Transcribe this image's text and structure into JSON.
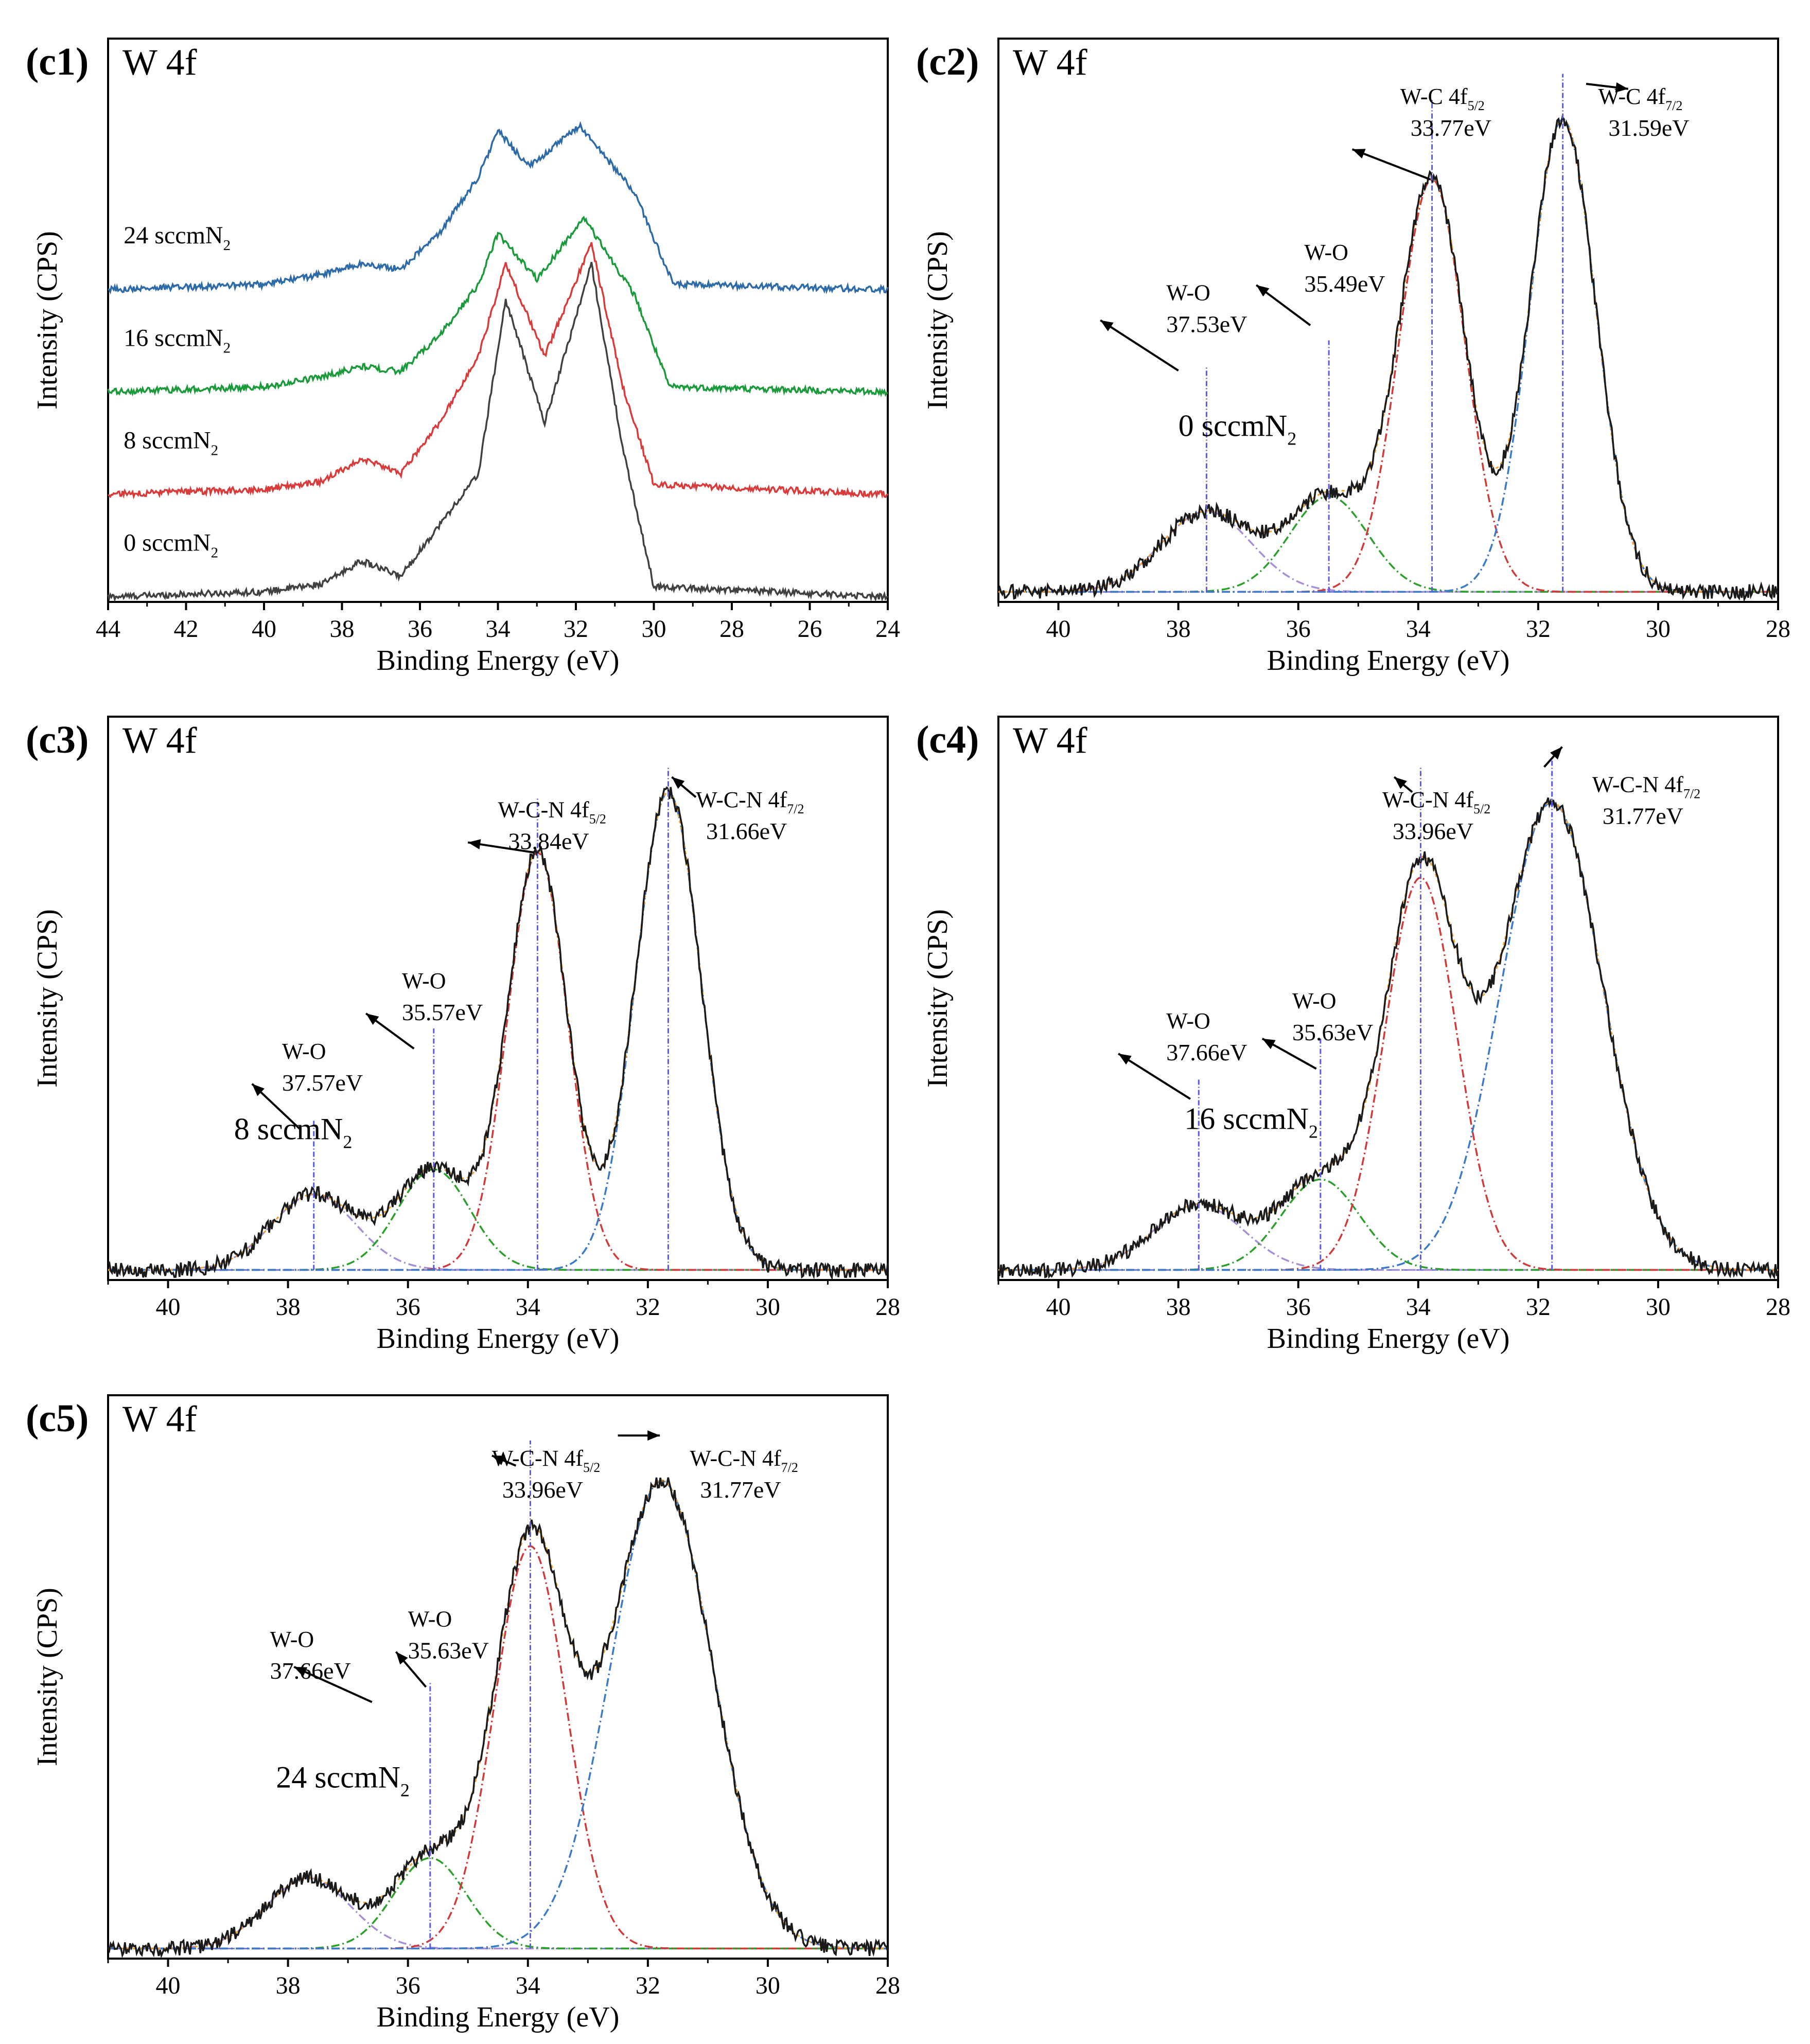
{
  "chart_data": [
    {
      "id": "c1",
      "type": "line",
      "panel_label": "(c1)",
      "title": "W 4f",
      "xlabel": "Binding Energy (eV)",
      "ylabel": "Intensity (CPS)",
      "xlim": [
        44,
        24
      ],
      "ylim": [
        0,
        11
      ],
      "x_ticks": [
        44,
        42,
        40,
        38,
        36,
        34,
        32,
        30,
        28,
        26,
        24
      ],
      "series": [
        {
          "name": "0 sccmN₂",
          "label_text": "0 sccmN",
          "label_sub": "2",
          "color": "#404040",
          "offset": 0.0,
          "x": [
            44,
            40,
            38.5,
            37.5,
            36.5,
            35.5,
            34.5,
            33.8,
            32.8,
            31.6,
            30.8,
            30,
            24
          ],
          "y": [
            0.1,
            0.2,
            0.35,
            0.8,
            0.5,
            1.5,
            2.5,
            5.9,
            3.5,
            6.6,
            3.0,
            0.3,
            0.1
          ]
        },
        {
          "name": "8 sccmN₂",
          "label_text": "8 sccmN",
          "label_sub": "2",
          "color": "#d93a3a",
          "offset": 2.0,
          "x": [
            44,
            40,
            38.5,
            37.5,
            36.5,
            35.5,
            34.5,
            33.8,
            32.8,
            31.6,
            30.8,
            30,
            24
          ],
          "y": [
            0.1,
            0.2,
            0.35,
            0.8,
            0.5,
            1.5,
            2.8,
            4.6,
            2.8,
            5.0,
            2.2,
            0.3,
            0.1
          ]
        },
        {
          "name": "16 sccmN₂",
          "label_text": "16 sccmN",
          "label_sub": "2",
          "color": "#1a9a3a",
          "offset": 4.0,
          "x": [
            44,
            40,
            38.5,
            37.5,
            36.5,
            35.5,
            34.5,
            34.0,
            33.0,
            31.8,
            30.5,
            29.6,
            24
          ],
          "y": [
            0.1,
            0.2,
            0.4,
            0.6,
            0.5,
            1.2,
            2.2,
            3.2,
            2.3,
            3.5,
            2.0,
            0.2,
            0.1
          ]
        },
        {
          "name": "24 sccmN₂",
          "label_text": "24 sccmN",
          "label_sub": "2",
          "color": "#2d6aa8",
          "offset": 6.0,
          "x": [
            44,
            40,
            38.5,
            37.5,
            36.5,
            35.5,
            34.5,
            34.0,
            33.2,
            31.9,
            30.5,
            29.5,
            24
          ],
          "y": [
            0.1,
            0.2,
            0.4,
            0.6,
            0.5,
            1.2,
            2.3,
            3.2,
            2.5,
            3.3,
            2.0,
            0.2,
            0.1
          ]
        }
      ]
    },
    {
      "id": "c2",
      "type": "line",
      "panel_label": "(c2)",
      "title": "W 4f",
      "xlabel": "Binding Energy (eV)",
      "ylabel": "Intensity (CPS)",
      "xlim": [
        41,
        28
      ],
      "ylim": [
        0,
        1.12
      ],
      "x_ticks": [
        40,
        38,
        36,
        34,
        32,
        30,
        28
      ],
      "baseline": 0.02,
      "condition": {
        "text": "0 sccmN",
        "sub": "2"
      },
      "peaks": [
        {
          "center": 37.53,
          "amp": 0.16,
          "sigma": 0.75,
          "color": "#a78fd6",
          "name": "W-O",
          "sub": "",
          "value": "37.53eV"
        },
        {
          "center": 35.49,
          "amp": 0.19,
          "sigma": 0.65,
          "color": "#2aa02a",
          "name": "W-O",
          "sub": "",
          "value": "35.49eV"
        },
        {
          "center": 33.77,
          "amp": 0.82,
          "sigma": 0.55,
          "color": "#d03a3a",
          "name": "W-C 4f",
          "sub": "5/2",
          "value": "33.77eV"
        },
        {
          "center": 31.59,
          "amp": 0.94,
          "sigma": 0.55,
          "color": "#3a7ac8",
          "name": "W-C 4f",
          "sub": "7/2",
          "value": "31.59eV"
        }
      ]
    },
    {
      "id": "c3",
      "type": "line",
      "panel_label": "(c3)",
      "title": "W 4f",
      "xlabel": "Binding Energy (eV)",
      "ylabel": "Intensity (CPS)",
      "xlim": [
        41,
        28
      ],
      "ylim": [
        0,
        1.12
      ],
      "x_ticks": [
        40,
        38,
        36,
        34,
        32,
        30,
        28
      ],
      "baseline": 0.02,
      "condition": {
        "text": "8 sccmN",
        "sub": "2"
      },
      "peaks": [
        {
          "center": 37.57,
          "amp": 0.15,
          "sigma": 0.7,
          "color": "#a78fd6",
          "name": "W-O",
          "sub": "",
          "value": "37.57eV"
        },
        {
          "center": 35.57,
          "amp": 0.2,
          "sigma": 0.6,
          "color": "#2aa02a",
          "name": "W-O",
          "sub": "",
          "value": "35.57eV"
        },
        {
          "center": 33.84,
          "amp": 0.83,
          "sigma": 0.5,
          "color": "#d03a3a",
          "name": "W-C-N 4f",
          "sub": "5/2",
          "value": "33.84eV"
        },
        {
          "center": 31.66,
          "amp": 0.95,
          "sigma": 0.55,
          "color": "#3a7ac8",
          "name": "W-C-N 4f",
          "sub": "7/2",
          "value": "31.66eV"
        }
      ]
    },
    {
      "id": "c4",
      "type": "line",
      "panel_label": "(c4)",
      "title": "W 4f",
      "xlabel": "Binding Energy (eV)",
      "ylabel": "Intensity (CPS)",
      "xlim": [
        41,
        28
      ],
      "ylim": [
        0,
        1.12
      ],
      "x_ticks": [
        40,
        38,
        36,
        34,
        32,
        30,
        28
      ],
      "baseline": 0.02,
      "condition": {
        "text": "16 sccmN",
        "sub": "2"
      },
      "peaks": [
        {
          "center": 37.66,
          "amp": 0.13,
          "sigma": 0.75,
          "color": "#a78fd6",
          "name": "W-O",
          "sub": "",
          "value": "37.66eV"
        },
        {
          "center": 35.63,
          "amp": 0.18,
          "sigma": 0.65,
          "color": "#2aa02a",
          "name": "W-O",
          "sub": "",
          "value": "35.63eV"
        },
        {
          "center": 33.96,
          "amp": 0.78,
          "sigma": 0.6,
          "color": "#d03a3a",
          "name": "W-C-N 4f",
          "sub": "5/2",
          "value": "33.96eV"
        },
        {
          "center": 31.77,
          "amp": 0.93,
          "sigma": 0.85,
          "color": "#3a7ac8",
          "name": "W-C-N 4f",
          "sub": "7/2",
          "value": "31.77eV"
        }
      ]
    },
    {
      "id": "c5",
      "type": "line",
      "panel_label": "(c5)",
      "title": "W 4f",
      "xlabel": "Binding Energy (eV)",
      "ylabel": "Intensity (CPS)",
      "xlim": [
        41,
        28
      ],
      "ylim": [
        0,
        1.12
      ],
      "x_ticks": [
        40,
        38,
        36,
        34,
        32,
        30,
        28
      ],
      "baseline": 0.02,
      "condition": {
        "text": "24 sccmN",
        "sub": "2"
      },
      "peaks": [
        {
          "center": 37.66,
          "amp": 0.14,
          "sigma": 0.7,
          "color": "#a78fd6",
          "name": "W-O",
          "sub": "",
          "value": "37.66eV"
        },
        {
          "center": 35.63,
          "amp": 0.18,
          "sigma": 0.6,
          "color": "#2aa02a",
          "name": "W-O",
          "sub": "",
          "value": "35.63eV"
        },
        {
          "center": 33.96,
          "amp": 0.8,
          "sigma": 0.6,
          "color": "#d03a3a",
          "name": "W-C-N 4f",
          "sub": "5/2",
          "value": "33.96eV"
        },
        {
          "center": 31.77,
          "amp": 0.93,
          "sigma": 0.85,
          "color": "#3a7ac8",
          "name": "W-C-N 4f",
          "sub": "7/2",
          "value": "31.77eV"
        }
      ]
    }
  ]
}
